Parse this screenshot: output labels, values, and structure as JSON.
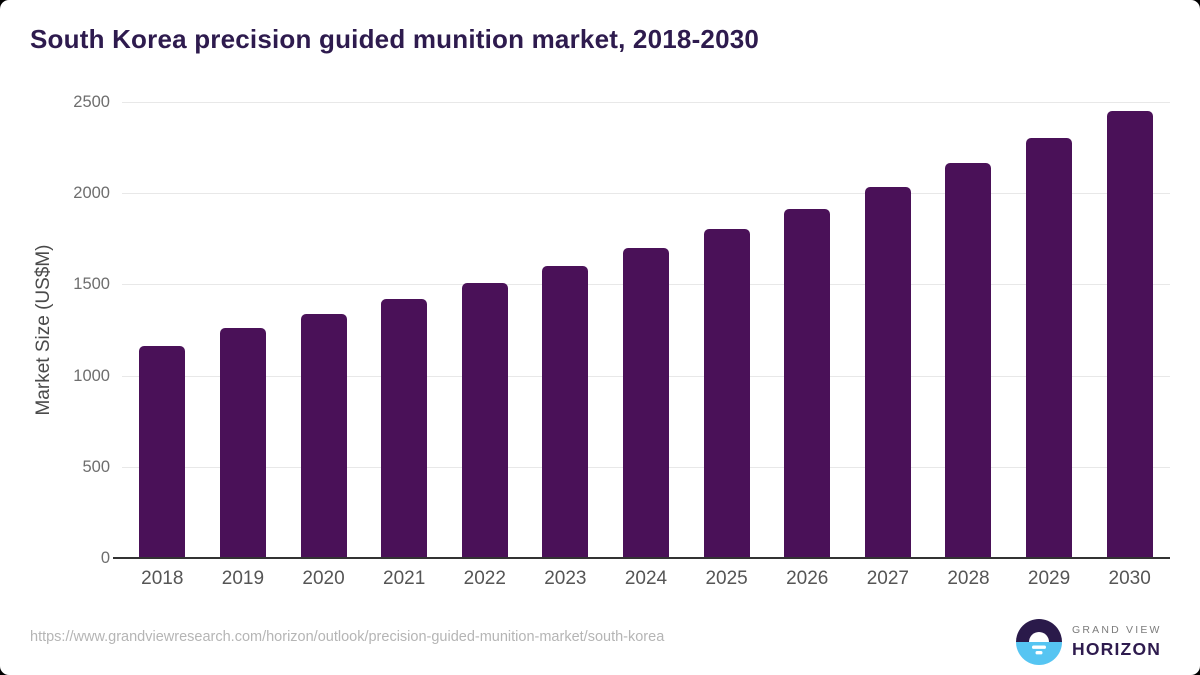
{
  "chart_data": {
    "type": "bar",
    "title": "South Korea precision guided munition market, 2018-2030",
    "categories": [
      "2018",
      "2019",
      "2020",
      "2021",
      "2022",
      "2023",
      "2024",
      "2025",
      "2026",
      "2027",
      "2028",
      "2029",
      "2030"
    ],
    "values": [
      1160,
      1260,
      1340,
      1420,
      1510,
      1600,
      1700,
      1805,
      1915,
      2035,
      2165,
      2300,
      2450
    ],
    "xlabel": "",
    "ylabel": "Market Size (US$M)",
    "ylim": [
      0,
      2500
    ],
    "yticks": [
      0,
      500,
      1000,
      1500,
      2000,
      2500
    ],
    "grid": true,
    "legend_position": "none",
    "bar_color": "#4a1158"
  },
  "footer": {
    "source_url": "https://www.grandviewresearch.com/horizon/outlook/precision-guided-munition-market/south-korea",
    "logo": {
      "line1": "GRAND VIEW",
      "line2": "HORIZON",
      "icon": "horizon-sunrise-circle-icon"
    }
  },
  "colors": {
    "title": "#2e1b4e",
    "bar": "#4a1158",
    "grid": "#e8e8e8",
    "axis": "#333333",
    "tick_label": "#6e6e6e",
    "x_label": "#555555",
    "url": "#b5b5b5",
    "logo_navy": "#2a1a4a",
    "logo_blue": "#56c5f2",
    "logo_gray": "#7c7c7c"
  }
}
